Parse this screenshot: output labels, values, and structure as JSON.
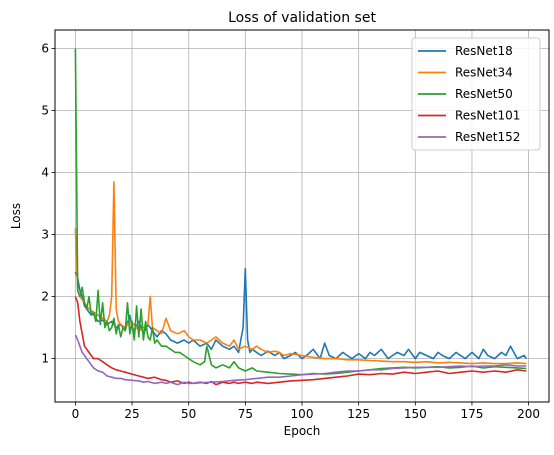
{
  "chart_data": {
    "type": "line",
    "title": "Loss of validation set",
    "xlabel": "Epoch",
    "ylabel": "Loss",
    "xlim": [
      -9,
      209
    ],
    "ylim": [
      0.3,
      6.3
    ],
    "xticks": [
      0,
      25,
      50,
      75,
      100,
      125,
      150,
      175,
      200
    ],
    "yticks": [
      1,
      2,
      3,
      4,
      5,
      6
    ],
    "grid": true,
    "legend_position": "top-right",
    "series": [
      {
        "name": "ResNet18",
        "color": "#1f77b4",
        "x": [
          0,
          1,
          2,
          3,
          4,
          5,
          6,
          7,
          8,
          9,
          10,
          12,
          14,
          16,
          18,
          20,
          22,
          24,
          25,
          26,
          28,
          30,
          32,
          34,
          36,
          38,
          40,
          42,
          45,
          48,
          50,
          52,
          55,
          58,
          60,
          62,
          65,
          68,
          70,
          72,
          73,
          74,
          75,
          76,
          77,
          78,
          80,
          82,
          85,
          88,
          90,
          92,
          95,
          97,
          100,
          102,
          105,
          108,
          110,
          112,
          115,
          118,
          120,
          122,
          125,
          128,
          130,
          132,
          135,
          138,
          140,
          142,
          145,
          147,
          150,
          152,
          155,
          158,
          160,
          162,
          165,
          168,
          170,
          172,
          175,
          178,
          180,
          182,
          185,
          188,
          190,
          192,
          195,
          198,
          199
        ],
        "y": [
          2.4,
          2.3,
          2.1,
          2.0,
          1.85,
          1.8,
          1.75,
          1.7,
          1.72,
          1.65,
          1.6,
          1.62,
          1.55,
          1.6,
          1.5,
          1.55,
          1.45,
          1.7,
          1.5,
          1.45,
          1.6,
          1.4,
          1.55,
          1.45,
          1.35,
          1.45,
          1.4,
          1.3,
          1.25,
          1.3,
          1.25,
          1.3,
          1.2,
          1.25,
          1.15,
          1.3,
          1.2,
          1.15,
          1.2,
          1.1,
          1.3,
          1.5,
          2.45,
          1.3,
          1.1,
          1.15,
          1.1,
          1.05,
          1.12,
          1.05,
          1.1,
          1.0,
          1.05,
          1.1,
          1.0,
          1.05,
          1.15,
          1.0,
          1.25,
          1.05,
          1.0,
          1.1,
          1.05,
          1.0,
          1.08,
          1.0,
          1.1,
          1.05,
          1.15,
          1.0,
          1.05,
          1.1,
          1.05,
          1.15,
          1.0,
          1.1,
          1.05,
          1.0,
          1.1,
          1.05,
          1.0,
          1.1,
          1.05,
          1.0,
          1.1,
          1.0,
          1.15,
          1.05,
          1.0,
          1.1,
          1.05,
          1.2,
          1.0,
          1.05,
          1.0
        ]
      },
      {
        "name": "ResNet34",
        "color": "#ff7f0e",
        "x": [
          0,
          1,
          2,
          3,
          4,
          6,
          8,
          10,
          12,
          14,
          15,
          16,
          17,
          18,
          19,
          20,
          22,
          24,
          26,
          28,
          30,
          32,
          33,
          34,
          36,
          38,
          40,
          42,
          45,
          48,
          50,
          52,
          55,
          58,
          60,
          62,
          65,
          68,
          70,
          72,
          75,
          78,
          80,
          82,
          85,
          88,
          90,
          92,
          95,
          100,
          105,
          110,
          115,
          120,
          125,
          130,
          135,
          140,
          145,
          150,
          155,
          160,
          165,
          170,
          175,
          180,
          185,
          190,
          195,
          199
        ],
        "y": [
          3.1,
          2.1,
          2.0,
          1.95,
          1.9,
          1.8,
          1.75,
          1.7,
          1.65,
          1.6,
          1.7,
          2.0,
          3.85,
          1.8,
          1.6,
          1.55,
          1.5,
          1.6,
          1.55,
          1.45,
          1.5,
          1.55,
          2.0,
          1.5,
          1.45,
          1.4,
          1.65,
          1.45,
          1.4,
          1.45,
          1.35,
          1.3,
          1.3,
          1.25,
          1.3,
          1.35,
          1.25,
          1.2,
          1.3,
          1.15,
          1.2,
          1.15,
          1.2,
          1.15,
          1.1,
          1.12,
          1.1,
          1.05,
          1.08,
          1.05,
          1.02,
          1.0,
          1.0,
          0.98,
          0.98,
          0.97,
          0.96,
          0.95,
          0.95,
          0.94,
          0.95,
          0.93,
          0.94,
          0.93,
          0.92,
          0.93,
          0.92,
          0.92,
          0.93,
          0.92
        ]
      },
      {
        "name": "ResNet50",
        "color": "#2ca02c",
        "x": [
          0,
          1,
          2,
          3,
          4,
          5,
          6,
          7,
          8,
          9,
          10,
          11,
          12,
          13,
          14,
          15,
          16,
          17,
          18,
          19,
          20,
          21,
          22,
          23,
          24,
          25,
          26,
          27,
          28,
          29,
          30,
          31,
          32,
          33,
          34,
          35,
          36,
          38,
          40,
          42,
          44,
          46,
          48,
          50,
          52,
          55,
          57,
          58,
          60,
          62,
          65,
          68,
          70,
          72,
          75,
          78,
          80,
          85,
          90,
          95,
          100,
          105,
          110,
          115,
          120,
          125,
          130,
          135,
          140,
          145,
          150,
          155,
          160,
          165,
          170,
          175,
          180,
          185,
          190,
          195,
          199
        ],
        "y": [
          6.0,
          2.1,
          2.0,
          2.15,
          1.9,
          1.8,
          2.0,
          1.7,
          1.75,
          1.6,
          2.1,
          1.55,
          1.9,
          1.5,
          1.6,
          1.45,
          1.5,
          1.65,
          1.4,
          1.55,
          1.35,
          1.5,
          1.45,
          1.9,
          1.4,
          1.6,
          1.3,
          1.85,
          1.35,
          1.8,
          1.3,
          1.6,
          1.35,
          1.3,
          1.5,
          1.25,
          1.3,
          1.2,
          1.2,
          1.15,
          1.1,
          1.1,
          1.05,
          1.0,
          0.95,
          0.9,
          0.95,
          1.2,
          0.9,
          0.85,
          0.9,
          0.85,
          0.95,
          0.85,
          0.8,
          0.85,
          0.8,
          0.78,
          0.76,
          0.75,
          0.74,
          0.76,
          0.75,
          0.76,
          0.78,
          0.8,
          0.82,
          0.84,
          0.85,
          0.86,
          0.85,
          0.86,
          0.87,
          0.85,
          0.86,
          0.88,
          0.85,
          0.87,
          0.86,
          0.85,
          0.84
        ]
      },
      {
        "name": "ResNet101",
        "color": "#d62728",
        "x": [
          0,
          1,
          2,
          3,
          4,
          6,
          8,
          10,
          12,
          14,
          16,
          18,
          20,
          22,
          25,
          28,
          30,
          32,
          35,
          38,
          40,
          42,
          45,
          48,
          50,
          52,
          55,
          58,
          60,
          62,
          65,
          68,
          70,
          72,
          75,
          78,
          80,
          85,
          90,
          95,
          100,
          105,
          110,
          115,
          120,
          125,
          130,
          135,
          140,
          145,
          150,
          155,
          160,
          165,
          170,
          175,
          180,
          185,
          190,
          195,
          199
        ],
        "y": [
          2.0,
          1.9,
          1.6,
          1.4,
          1.2,
          1.1,
          1.0,
          1.0,
          0.95,
          0.9,
          0.85,
          0.82,
          0.8,
          0.78,
          0.75,
          0.72,
          0.7,
          0.68,
          0.7,
          0.66,
          0.65,
          0.62,
          0.64,
          0.6,
          0.62,
          0.6,
          0.62,
          0.6,
          0.63,
          0.58,
          0.62,
          0.6,
          0.62,
          0.6,
          0.62,
          0.6,
          0.62,
          0.6,
          0.62,
          0.64,
          0.65,
          0.66,
          0.68,
          0.7,
          0.72,
          0.75,
          0.74,
          0.76,
          0.75,
          0.78,
          0.76,
          0.78,
          0.8,
          0.76,
          0.78,
          0.8,
          0.78,
          0.8,
          0.78,
          0.82,
          0.8
        ]
      },
      {
        "name": "ResNet152",
        "color": "#9467bd",
        "x": [
          0,
          1,
          2,
          3,
          4,
          5,
          6,
          8,
          10,
          12,
          14,
          16,
          18,
          20,
          22,
          25,
          28,
          30,
          32,
          35,
          38,
          40,
          42,
          45,
          48,
          50,
          55,
          60,
          65,
          70,
          75,
          80,
          85,
          90,
          95,
          100,
          105,
          110,
          115,
          120,
          125,
          130,
          135,
          140,
          145,
          150,
          155,
          160,
          165,
          170,
          175,
          180,
          185,
          190,
          195,
          199
        ],
        "y": [
          1.38,
          1.3,
          1.2,
          1.1,
          1.05,
          1.0,
          0.95,
          0.85,
          0.8,
          0.78,
          0.72,
          0.7,
          0.68,
          0.68,
          0.66,
          0.65,
          0.64,
          0.62,
          0.63,
          0.6,
          0.62,
          0.6,
          0.62,
          0.58,
          0.62,
          0.6,
          0.61,
          0.62,
          0.63,
          0.65,
          0.66,
          0.68,
          0.7,
          0.7,
          0.72,
          0.74,
          0.75,
          0.76,
          0.78,
          0.8,
          0.8,
          0.82,
          0.82,
          0.84,
          0.85,
          0.86,
          0.86,
          0.86,
          0.87,
          0.88,
          0.87,
          0.88,
          0.88,
          0.9,
          0.88,
          0.88
        ]
      }
    ]
  }
}
